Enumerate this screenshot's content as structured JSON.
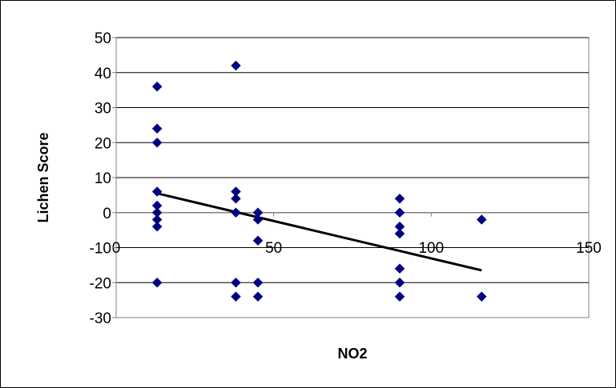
{
  "chart_data": {
    "type": "scatter",
    "title": "",
    "xlabel": "NO2",
    "ylabel": "Lichen Score",
    "xlim": [
      0,
      150
    ],
    "ylim": [
      -30,
      50
    ],
    "x_ticks": [
      0,
      50,
      100,
      150
    ],
    "y_ticks": [
      -30,
      -20,
      -10,
      0,
      10,
      20,
      30,
      40,
      50
    ],
    "grid": "horizontal",
    "legend": "none",
    "marker_color": "#000080",
    "trendline_color": "#000000",
    "points": [
      {
        "x": 13,
        "y": 36
      },
      {
        "x": 13,
        "y": 24
      },
      {
        "x": 13,
        "y": 20
      },
      {
        "x": 13,
        "y": 6
      },
      {
        "x": 13,
        "y": 2
      },
      {
        "x": 13,
        "y": 0
      },
      {
        "x": 13,
        "y": -2
      },
      {
        "x": 13,
        "y": -4
      },
      {
        "x": 13,
        "y": -20
      },
      {
        "x": 38,
        "y": 42
      },
      {
        "x": 38,
        "y": 6
      },
      {
        "x": 38,
        "y": 4
      },
      {
        "x": 38,
        "y": 0
      },
      {
        "x": 38,
        "y": -20
      },
      {
        "x": 38,
        "y": -24
      },
      {
        "x": 45,
        "y": 0
      },
      {
        "x": 45,
        "y": -2
      },
      {
        "x": 45,
        "y": -8
      },
      {
        "x": 45,
        "y": -20
      },
      {
        "x": 45,
        "y": -24
      },
      {
        "x": 90,
        "y": 4
      },
      {
        "x": 90,
        "y": 0
      },
      {
        "x": 90,
        "y": -4
      },
      {
        "x": 90,
        "y": -6
      },
      {
        "x": 90,
        "y": -16
      },
      {
        "x": 90,
        "y": -20
      },
      {
        "x": 90,
        "y": -24
      },
      {
        "x": 116,
        "y": -2
      },
      {
        "x": 116,
        "y": -24
      }
    ],
    "trendline": {
      "x": [
        13,
        116
      ],
      "y": [
        5.5,
        -16.5
      ]
    }
  }
}
